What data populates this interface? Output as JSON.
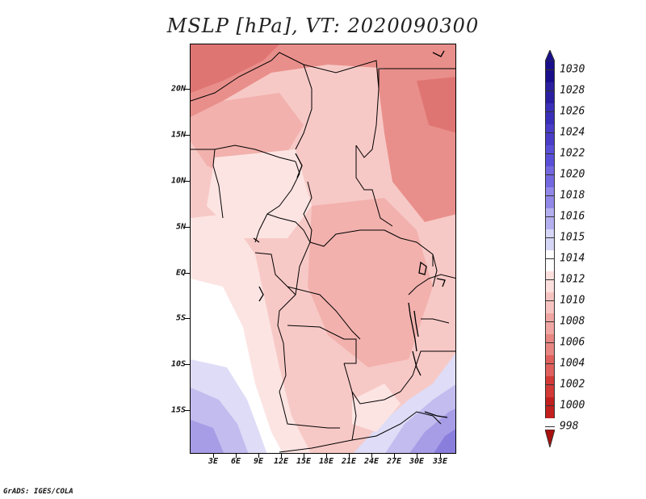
{
  "title": "MSLP [hPa], VT: 2020090300",
  "footer": "GrADS: IGES/COLA",
  "lat_labels": [
    "20N",
    "15N",
    "10N",
    "5N",
    "EQ",
    "5S",
    "10S",
    "15S"
  ],
  "lon_labels": [
    "3E",
    "6E",
    "9E",
    "12E",
    "15E",
    "18E",
    "21E",
    "24E",
    "27E",
    "30E",
    "33E"
  ],
  "colorbar": {
    "levels": [
      "1030",
      "1028",
      "1026",
      "1024",
      "1022",
      "1020",
      "1018",
      "1016",
      "1015",
      "1014",
      "1012",
      "1010",
      "1008",
      "1006",
      "1004",
      "1002",
      "1000",
      "998"
    ],
    "colors": [
      "#1a0f8a",
      "#2a1fa0",
      "#3a2fb8",
      "#4a3ec8",
      "#5a50d8",
      "#7468e0",
      "#9288e8",
      "#b4b0f0",
      "#d6d6f6",
      "#ffffff",
      "#fce0de",
      "#f6c4c0",
      "#f0a6a2",
      "#e88682",
      "#df605c",
      "#d23a36",
      "#c2201e",
      "#a8100e"
    ]
  },
  "map": {
    "fill_colors": {
      "very_light": "#fce4e2",
      "light": "#f7c9c6",
      "medium": "#f2b1ad",
      "strong": "#e98f8b",
      "deep": "#df7572",
      "white": "#ffffff",
      "pale_blue": "#dedcf6",
      "light_blue": "#c2bcef",
      "blue": "#a69de6",
      "deep_blue": "#8a7edc"
    }
  }
}
